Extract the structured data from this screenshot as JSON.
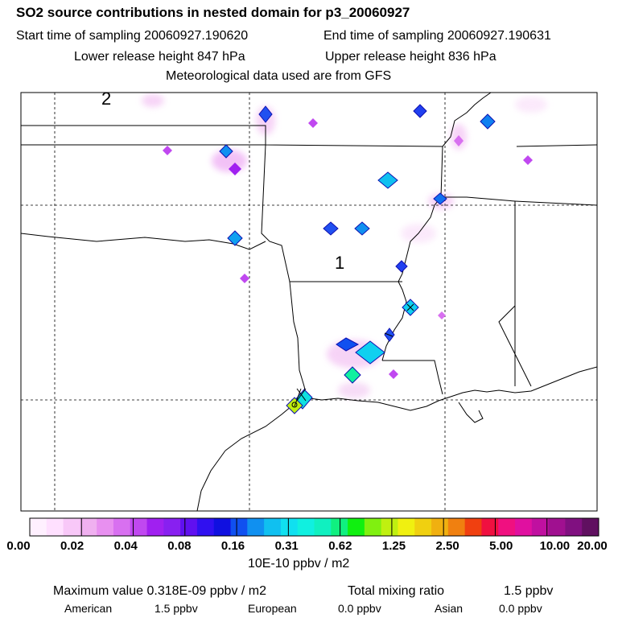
{
  "header": {
    "title": "SO2 source contributions in nested domain for p3_20060927",
    "start_label": "Start time of sampling 20060927.190620",
    "end_label": "End time of sampling 20060927.190631",
    "lower_label": "Lower release height  847 hPa",
    "upper_label": "Upper release height  836 hPa",
    "met_label": "Meteorological data used are from GFS"
  },
  "map": {
    "domain_labels": [
      "2",
      "1"
    ],
    "colors": {
      "border": "#000000",
      "gridline": "#000000"
    }
  },
  "colorbar": {
    "colors": [
      "#fff0ff",
      "#ffe0ff",
      "#f8c8f8",
      "#f0b0f0",
      "#e890f0",
      "#d870f0",
      "#c048f0",
      "#a020f0",
      "#8820f0",
      "#6010f0",
      "#3010f0",
      "#1010e0",
      "#1050f0",
      "#1090f0",
      "#10c0f0",
      "#10e0f0",
      "#10f0e0",
      "#10f0c0",
      "#10f080",
      "#10f010",
      "#80f010",
      "#c0f010",
      "#f0f010",
      "#f0d010",
      "#f0b010",
      "#f08010",
      "#f04010",
      "#f01040",
      "#f01080",
      "#e010a0",
      "#c010a0",
      "#a01090",
      "#801080",
      "#601060"
    ],
    "tick_labels": [
      "0.00",
      "0.02",
      "0.04",
      "0.08",
      "0.16",
      "0.31",
      "0.62",
      "1.25",
      "2.50",
      "5.00",
      "10.00",
      "20.00"
    ],
    "unit": "10E-10 ppbv / m2"
  },
  "footer": {
    "max_value": "Maximum value  0.318E-09 ppbv / m2",
    "total_mixing": "Total mixing ratio",
    "total_value": "1.5 ppbv",
    "american_label": "American",
    "american_value": "1.5 ppbv",
    "european_label": "European",
    "european_value": "0.0 ppbv",
    "asian_label": "Asian",
    "asian_value": "0.0 ppbv"
  }
}
